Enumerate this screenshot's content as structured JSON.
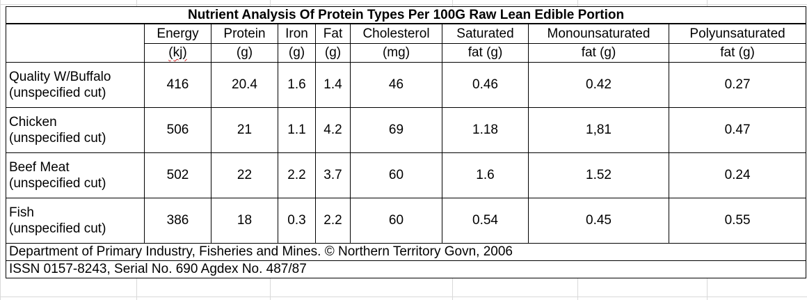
{
  "title": "Nutrient Analysis Of Protein Types Per 100G Raw Lean Edible Portion",
  "columns": [
    {
      "name": "Energy",
      "unit": "(kj)"
    },
    {
      "name": "Protein",
      "unit": "(g)"
    },
    {
      "name": "Iron",
      "unit": "(g)"
    },
    {
      "name": "Fat",
      "unit": "(g)"
    },
    {
      "name": "Cholesterol",
      "unit": "(mg)"
    },
    {
      "name": "Saturated",
      "unit": "fat (g)"
    },
    {
      "name": "Monounsaturated",
      "unit": "fat (g)"
    },
    {
      "name": "Polyunsaturated",
      "unit": "fat (g)"
    }
  ],
  "rows": [
    {
      "name": "Quality W/Buffalo",
      "sub": "(unspecified cut)",
      "values": [
        "416",
        "20.4",
        "1.6",
        "1.4",
        "46",
        "0.46",
        "0.42",
        "0.27"
      ]
    },
    {
      "name": "Chicken",
      "sub": "(unspecified cut)",
      "values": [
        "506",
        "21",
        "1.1",
        "4.2",
        "69",
        "1.18",
        "1,81",
        "0.47"
      ]
    },
    {
      "name": "Beef Meat",
      "sub": "(unspecified cut)",
      "values": [
        "502",
        "22",
        "2.2",
        "3.7",
        "60",
        "1.6",
        "1.52",
        "0.24"
      ]
    },
    {
      "name": "Fish",
      "sub": "(unspecified cut)",
      "values": [
        "386",
        "18",
        "0.3",
        "2.2",
        "60",
        "0.54",
        "0.45",
        "0.55"
      ]
    }
  ],
  "footer": {
    "source": "Department of Primary Industry, Fisheries and Mines. © Northern Territory Govn, 2006",
    "issn": "ISSN 0157-8243, Serial No. 690 Agdex No. 487/87"
  }
}
